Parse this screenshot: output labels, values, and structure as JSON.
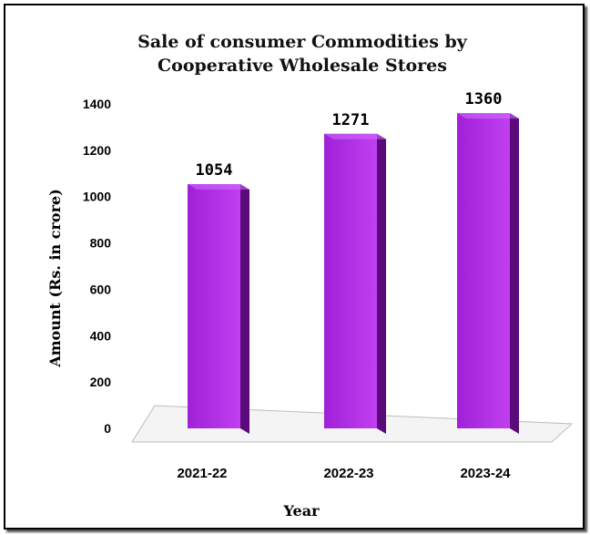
{
  "chart_data": {
    "type": "bar",
    "title_lines": [
      "Sale of consumer  Commodities by",
      "Cooperative Wholesale Stores"
    ],
    "xlabel": "Year",
    "ylabel": "Amount (Rs. in crore)",
    "categories": [
      "2021-22",
      "2022-23",
      "2023-24"
    ],
    "values": [
      1054,
      1271,
      1360
    ],
    "ylim": [
      0,
      1400
    ],
    "yticks": [
      "0",
      "200",
      "400",
      "600",
      "800",
      "1000",
      "1200",
      "1400"
    ],
    "grid": false,
    "legend": "none",
    "colors": {
      "bar_front": "#a020d8",
      "bar_front_light": "#c040f0",
      "bar_side": "#5a0a7a",
      "bar_top": "#d070ff"
    }
  }
}
